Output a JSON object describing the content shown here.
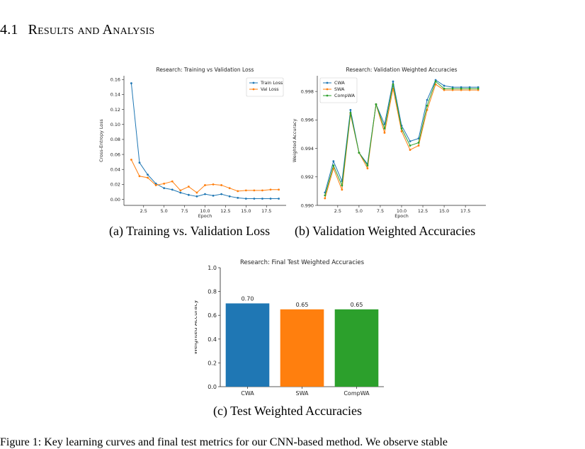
{
  "section": {
    "number": "4.1",
    "title": "Results and Analysis"
  },
  "captions": {
    "a": "(a) Training vs. Validation Loss",
    "b": "(b) Validation Weighted Accuracies",
    "c": "(c) Test Weighted Accuracies"
  },
  "bottom_text": "Figure 1: Key learning curves and final test metrics for our CNN-based method. We observe stable",
  "chart_data": [
    {
      "type": "line",
      "title": "Research: Training vs Validation Loss",
      "xlabel": "Epoch",
      "ylabel": "Cross-Entropy Loss",
      "x": [
        1,
        2,
        3,
        4,
        5,
        6,
        7,
        8,
        9,
        10,
        11,
        12,
        13,
        14,
        15,
        16,
        17,
        18,
        19
      ],
      "xlim": [
        0.1,
        19.9
      ],
      "ylim": [
        -0.008,
        0.165
      ],
      "xticks": [
        2.5,
        5.0,
        7.5,
        10.0,
        12.5,
        15.0,
        17.5
      ],
      "xtick_labels": [
        "2.5",
        "5.0",
        "7.5",
        "10.0",
        "12.5",
        "15.0",
        "17.5"
      ],
      "yticks": [
        0.0,
        0.02,
        0.04,
        0.06,
        0.08,
        0.1,
        0.12,
        0.14,
        0.16
      ],
      "ytick_labels": [
        "0.00",
        "0.02",
        "0.04",
        "0.06",
        "0.08",
        "0.10",
        "0.12",
        "0.14",
        "0.16"
      ],
      "legend": "top-right",
      "series": [
        {
          "name": "Train Loss",
          "color": "#1f77b4",
          "values": [
            0.155,
            0.049,
            0.033,
            0.021,
            0.015,
            0.013,
            0.009,
            0.006,
            0.004,
            0.007,
            0.005,
            0.007,
            0.004,
            0.002,
            0.001,
            0.001,
            0.001,
            0.001,
            0.001
          ]
        },
        {
          "name": "Val Loss",
          "color": "#ff7f0e",
          "values": [
            0.053,
            0.031,
            0.029,
            0.019,
            0.021,
            0.024,
            0.012,
            0.017,
            0.009,
            0.019,
            0.02,
            0.019,
            0.015,
            0.011,
            0.012,
            0.012,
            0.012,
            0.013,
            0.013
          ]
        }
      ]
    },
    {
      "type": "line",
      "title": "Research: Validation Weighted Accuracies",
      "xlabel": "Epoch",
      "ylabel": "Weighted Accuracy",
      "x": [
        1,
        2,
        3,
        4,
        5,
        6,
        7,
        8,
        9,
        10,
        11,
        12,
        13,
        14,
        15,
        16,
        17,
        18,
        19
      ],
      "xlim": [
        0.1,
        19.9
      ],
      "ylim": [
        0.99,
        0.9991
      ],
      "xticks": [
        2.5,
        5.0,
        7.5,
        10.0,
        12.5,
        15.0,
        17.5
      ],
      "xtick_labels": [
        "2.5",
        "5.0",
        "7.5",
        "10.0",
        "12.5",
        "15.0",
        "17.5"
      ],
      "yticks": [
        0.99,
        0.992,
        0.994,
        0.996,
        0.998
      ],
      "ytick_labels": [
        "0.990",
        "0.992",
        "0.994",
        "0.996",
        "0.998"
      ],
      "legend": "top-left",
      "series": [
        {
          "name": "CWA",
          "color": "#1f77b4",
          "values": [
            0.9909,
            0.9931,
            0.9917,
            0.9967,
            0.9937,
            0.9929,
            0.9971,
            0.9957,
            0.9987,
            0.9956,
            0.9945,
            0.9947,
            0.9974,
            0.9988,
            0.9984,
            0.9983,
            0.9983,
            0.9983,
            0.9983
          ]
        },
        {
          "name": "SWA",
          "color": "#ff7f0e",
          "values": [
            0.9905,
            0.9926,
            0.9911,
            0.9964,
            0.9937,
            0.9926,
            0.9971,
            0.9951,
            0.9982,
            0.9952,
            0.9939,
            0.9942,
            0.9967,
            0.9985,
            0.9981,
            0.9981,
            0.9981,
            0.9981,
            0.9981
          ]
        },
        {
          "name": "CompWA",
          "color": "#2ca02c",
          "values": [
            0.9907,
            0.9928,
            0.9914,
            0.9965,
            0.9937,
            0.9928,
            0.9971,
            0.9954,
            0.9985,
            0.9954,
            0.9942,
            0.9944,
            0.997,
            0.9987,
            0.9982,
            0.9982,
            0.9982,
            0.9982,
            0.9982
          ]
        }
      ]
    },
    {
      "type": "bar",
      "title": "Research: Final Test Weighted Accuracies",
      "xlabel": "",
      "ylabel": "Weighted Accuracy",
      "categories": [
        "CWA",
        "SWA",
        "CompWA"
      ],
      "values": [
        0.7,
        0.65,
        0.65
      ],
      "value_labels": [
        "0.70",
        "0.65",
        "0.65"
      ],
      "colors": [
        "#1f77b4",
        "#ff7f0e",
        "#2ca02c"
      ],
      "ylim": [
        0,
        1.0
      ],
      "yticks": [
        0,
        0.2,
        0.4,
        0.6,
        0.8,
        1.0
      ],
      "ytick_labels": [
        "0.0",
        "0.2",
        "0.4",
        "0.6",
        "0.8",
        "1.0"
      ]
    }
  ]
}
